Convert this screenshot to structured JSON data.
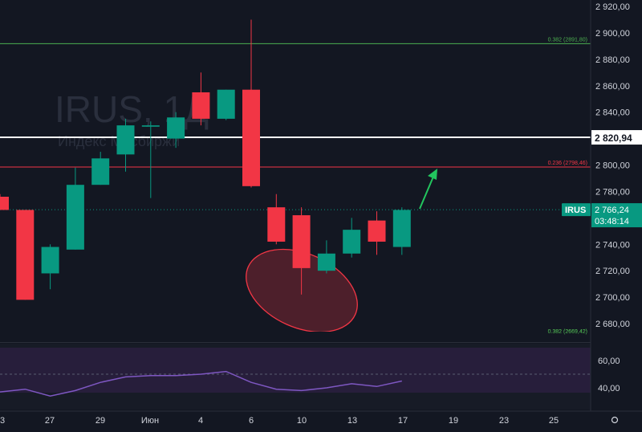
{
  "chart_data": [
    {
      "type": "candlestick",
      "symbol": "IRUS",
      "watermark_title": "IRUS, 1Д",
      "watermark_subtitle": "Индекс Мосбиржи",
      "x_labels": [
        "3",
        "27",
        "29",
        "Июн",
        "4",
        "6",
        "10",
        "13",
        "17",
        "19",
        "23",
        "25"
      ],
      "y_ticks": [
        2920,
        2900,
        2880,
        2860,
        2840,
        2820,
        2800,
        2780,
        2760,
        2740,
        2720,
        2700,
        2680
      ],
      "y_tick_labels": [
        "2 920,00",
        "2 900,00",
        "2 880,00",
        "2 860,00",
        "2 840,00",
        "2 820,00",
        "2 800,00",
        "2 780,00",
        "2 760,00",
        "2 740,00",
        "2 720,00",
        "2 700,00",
        "2 680,00"
      ],
      "ylim": [
        2675,
        2930
      ],
      "candles": [
        {
          "o": 2776,
          "h": 2778,
          "l": 2768,
          "c": 2766
        },
        {
          "o": 2766,
          "h": 2766,
          "l": 2698,
          "c": 2698
        },
        {
          "o": 2718,
          "h": 2740,
          "l": 2706,
          "c": 2738
        },
        {
          "o": 2736,
          "h": 2798,
          "l": 2736,
          "c": 2785
        },
        {
          "o": 2785,
          "h": 2810,
          "l": 2785,
          "c": 2805
        },
        {
          "o": 2808,
          "h": 2835,
          "l": 2795,
          "c": 2830
        },
        {
          "o": 2829,
          "h": 2833,
          "l": 2775,
          "c": 2830
        },
        {
          "o": 2820,
          "h": 2840,
          "l": 2813,
          "c": 2836
        },
        {
          "o": 2855,
          "h": 2870,
          "l": 2830,
          "c": 2835
        },
        {
          "o": 2835,
          "h": 2857,
          "l": 2834,
          "c": 2857
        },
        {
          "o": 2857,
          "h": 2910,
          "l": 2783,
          "c": 2784
        },
        {
          "o": 2768,
          "h": 2778,
          "l": 2740,
          "c": 2742
        },
        {
          "o": 2762,
          "h": 2768,
          "l": 2702,
          "c": 2722
        },
        {
          "o": 2720,
          "h": 2743,
          "l": 2718,
          "c": 2733
        },
        {
          "o": 2733,
          "h": 2760,
          "l": 2730,
          "c": 2751
        },
        {
          "o": 2758,
          "h": 2765,
          "l": 2732,
          "c": 2742
        },
        {
          "o": 2738,
          "h": 2768,
          "l": 2732,
          "c": 2766
        }
      ],
      "levels": [
        {
          "label": "0.382 (2891,80)",
          "value": 2891.8,
          "color": "#4caf50"
        },
        {
          "label": "0.236 (2798,46)",
          "value": 2798.46,
          "color": "#f23645"
        },
        {
          "label": "0.382 (2669,42)",
          "value": 2669.42,
          "color": "#4caf50"
        }
      ],
      "horizontal_line": {
        "value": 2820.94,
        "label": "2 820,94",
        "color": "#ffffff"
      },
      "last_price": {
        "symbol": "IRUS",
        "value": 2766.24,
        "label": "2 766,24",
        "countdown": "03:48:14",
        "color": "#089981"
      },
      "colors": {
        "up": "#089981",
        "down": "#f23645",
        "ellipse": "#f23645",
        "arrow": "#22c55e",
        "background": "#131722"
      }
    },
    {
      "type": "line",
      "y_tick_labels": [
        "60,00",
        "40,00"
      ],
      "y_ticks": [
        60,
        40
      ],
      "ylim": [
        30,
        68
      ],
      "band": [
        60,
        40
      ],
      "values": [
        37,
        39,
        34,
        38,
        44,
        48,
        49,
        49,
        50,
        52,
        44,
        39,
        38,
        40,
        43,
        41,
        45
      ],
      "color": "#7e57c2"
    }
  ]
}
